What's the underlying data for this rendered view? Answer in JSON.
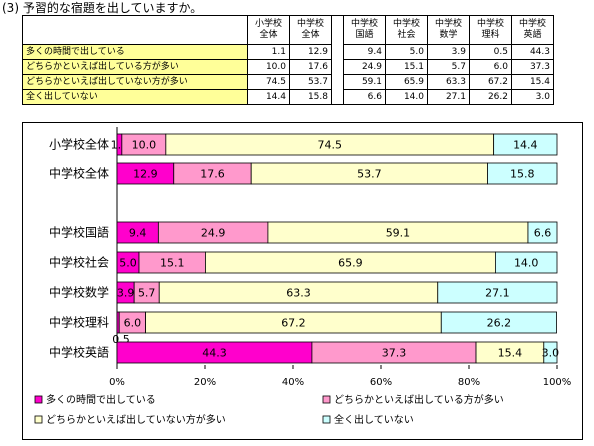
{
  "title": "(3) 予習的な宿題を出していますか。",
  "table": {
    "columns": [
      "小学校全体",
      "中学校全体",
      "中学校国語",
      "中学校社会",
      "中学校数学",
      "中学校理科",
      "中学校英語"
    ],
    "column_headers": [
      [
        "小学校",
        "全体"
      ],
      [
        "中学校",
        "全体"
      ],
      [
        "中学校",
        "国語"
      ],
      [
        "中学校",
        "社会"
      ],
      [
        "中学校",
        "数学"
      ],
      [
        "中学校",
        "理科"
      ],
      [
        "中学校",
        "英語"
      ]
    ],
    "rows": [
      {
        "label": "多くの時間で出している",
        "values": [
          "1.1",
          "12.9",
          "9.4",
          "5.0",
          "3.9",
          "0.5",
          "44.3"
        ]
      },
      {
        "label": "どちらかといえば出している方が多い",
        "values": [
          "10.0",
          "17.6",
          "24.9",
          "15.1",
          "5.7",
          "6.0",
          "37.3"
        ]
      },
      {
        "label": "どちらかといえば出していない方が多い",
        "values": [
          "74.5",
          "53.7",
          "59.1",
          "65.9",
          "63.3",
          "67.2",
          "15.4"
        ]
      },
      {
        "label": "全く出していない",
        "values": [
          "14.4",
          "15.8",
          "6.6",
          "14.0",
          "27.1",
          "26.2",
          "3.0"
        ]
      }
    ]
  },
  "chart_data": {
    "type": "bar",
    "orientation": "horizontal",
    "stacked": "percent",
    "categories": [
      "小学校全体",
      "中学校全体",
      "中学校国語",
      "中学校社会",
      "中学校数学",
      "中学校理科",
      "中学校英語"
    ],
    "series": [
      {
        "name": "多くの時間で出している",
        "color": "#ff00cc",
        "values": [
          1.1,
          12.9,
          9.4,
          5.0,
          3.9,
          0.5,
          44.3
        ]
      },
      {
        "name": "どちらかといえば出している方が多い",
        "color": "#ff99cc",
        "values": [
          10.0,
          17.6,
          24.9,
          15.1,
          5.7,
          6.0,
          37.3
        ]
      },
      {
        "name": "どちらかといえば出していない方が多い",
        "color": "#ffffcc",
        "values": [
          74.5,
          53.7,
          59.1,
          65.9,
          63.3,
          67.2,
          15.4
        ]
      },
      {
        "name": "全く出していない",
        "color": "#ccffff",
        "values": [
          14.4,
          15.8,
          6.6,
          14.0,
          27.1,
          26.2,
          3.0
        ]
      }
    ],
    "xlim": [
      0,
      100
    ],
    "xticks": [
      "0%",
      "20%",
      "40%",
      "60%",
      "80%",
      "100%"
    ],
    "grid": false,
    "legend_position": "bottom"
  }
}
